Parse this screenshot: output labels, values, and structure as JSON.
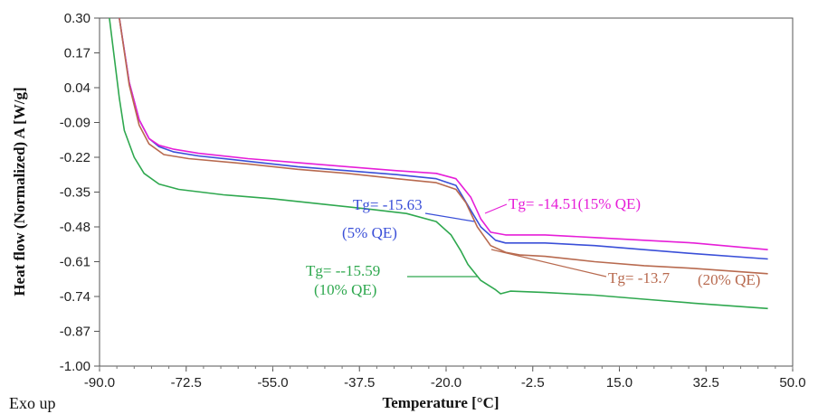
{
  "chart_data": {
    "type": "line",
    "xlabel": "Temperature [°C]",
    "ylabel": "Heat flow (Normalized) A [W/g]",
    "xlim": [
      -90,
      50
    ],
    "ylim": [
      -1.0,
      0.3
    ],
    "x_ticks": [
      "-90.0",
      "-72.5",
      "-55.0",
      "-37.5",
      "-20.0",
      "-2.5",
      "15.0",
      "32.5",
      "50.0"
    ],
    "y_ticks": [
      "0.30",
      "0.17",
      "0.04",
      "-0.09",
      "-0.22",
      "-0.35",
      "-0.48",
      "-0.61",
      "-0.74",
      "-0.87",
      "-1.00"
    ],
    "corner_note": "Exo up",
    "series": [
      {
        "key": "qe5",
        "color": "#3a4fd8",
        "points": [
          [
            -86,
            0.3
          ],
          [
            -84,
            0.06
          ],
          [
            -82,
            -0.08
          ],
          [
            -80,
            -0.15
          ],
          [
            -78,
            -0.18
          ],
          [
            -75,
            -0.2
          ],
          [
            -70,
            -0.215
          ],
          [
            -60,
            -0.235
          ],
          [
            -50,
            -0.255
          ],
          [
            -40,
            -0.27
          ],
          [
            -30,
            -0.285
          ],
          [
            -22,
            -0.3
          ],
          [
            -18,
            -0.325
          ],
          [
            -15.6,
            -0.4
          ],
          [
            -13,
            -0.48
          ],
          [
            -10,
            -0.53
          ],
          [
            -8,
            -0.54
          ],
          [
            0,
            -0.54
          ],
          [
            10,
            -0.55
          ],
          [
            20,
            -0.565
          ],
          [
            30,
            -0.58
          ],
          [
            45,
            -0.6
          ]
        ]
      },
      {
        "key": "qe15",
        "color": "#e61ed8",
        "points": [
          [
            -86,
            0.3
          ],
          [
            -84,
            0.06
          ],
          [
            -82,
            -0.08
          ],
          [
            -80,
            -0.15
          ],
          [
            -78,
            -0.175
          ],
          [
            -75,
            -0.19
          ],
          [
            -70,
            -0.205
          ],
          [
            -60,
            -0.225
          ],
          [
            -50,
            -0.24
          ],
          [
            -40,
            -0.255
          ],
          [
            -30,
            -0.27
          ],
          [
            -22,
            -0.28
          ],
          [
            -18,
            -0.3
          ],
          [
            -15,
            -0.37
          ],
          [
            -13,
            -0.45
          ],
          [
            -11,
            -0.5
          ],
          [
            -8,
            -0.51
          ],
          [
            0,
            -0.51
          ],
          [
            10,
            -0.52
          ],
          [
            20,
            -0.53
          ],
          [
            30,
            -0.54
          ],
          [
            45,
            -0.565
          ]
        ]
      },
      {
        "key": "qe20",
        "color": "#b86a4f",
        "points": [
          [
            -86,
            0.3
          ],
          [
            -84,
            0.05
          ],
          [
            -82,
            -0.1
          ],
          [
            -80,
            -0.17
          ],
          [
            -77,
            -0.21
          ],
          [
            -72,
            -0.225
          ],
          [
            -60,
            -0.245
          ],
          [
            -50,
            -0.265
          ],
          [
            -40,
            -0.28
          ],
          [
            -30,
            -0.3
          ],
          [
            -22,
            -0.315
          ],
          [
            -18,
            -0.34
          ],
          [
            -16,
            -0.39
          ],
          [
            -13.7,
            -0.48
          ],
          [
            -11,
            -0.55
          ],
          [
            -8,
            -0.575
          ],
          [
            -5,
            -0.585
          ],
          [
            0,
            -0.59
          ],
          [
            10,
            -0.61
          ],
          [
            20,
            -0.625
          ],
          [
            30,
            -0.635
          ],
          [
            45,
            -0.655
          ]
        ]
      },
      {
        "key": "qe10",
        "color": "#2fa84f",
        "points": [
          [
            -88,
            0.3
          ],
          [
            -87,
            0.15
          ],
          [
            -86,
            0.0
          ],
          [
            -85,
            -0.12
          ],
          [
            -83,
            -0.22
          ],
          [
            -81,
            -0.28
          ],
          [
            -78,
            -0.32
          ],
          [
            -74,
            -0.34
          ],
          [
            -65,
            -0.36
          ],
          [
            -55,
            -0.375
          ],
          [
            -45,
            -0.395
          ],
          [
            -35,
            -0.415
          ],
          [
            -28,
            -0.43
          ],
          [
            -22,
            -0.46
          ],
          [
            -19,
            -0.51
          ],
          [
            -17,
            -0.57
          ],
          [
            -15.6,
            -0.62
          ],
          [
            -13,
            -0.68
          ],
          [
            -10,
            -0.715
          ],
          [
            -9,
            -0.73
          ],
          [
            -7,
            -0.72
          ],
          [
            0,
            -0.725
          ],
          [
            10,
            -0.735
          ],
          [
            20,
            -0.75
          ],
          [
            30,
            -0.765
          ],
          [
            45,
            -0.785
          ]
        ]
      }
    ]
  },
  "labels": {
    "tg_5": "Tg= -15.63",
    "qe_5": "(5% QE)",
    "tg_15": "Tg= -14.51(15% QE)",
    "tg_10": "Tg= --15.59",
    "qe_10": "(10% QE)",
    "tg_20": "Tg= -13.7",
    "qe_20": "(20% QE)"
  }
}
